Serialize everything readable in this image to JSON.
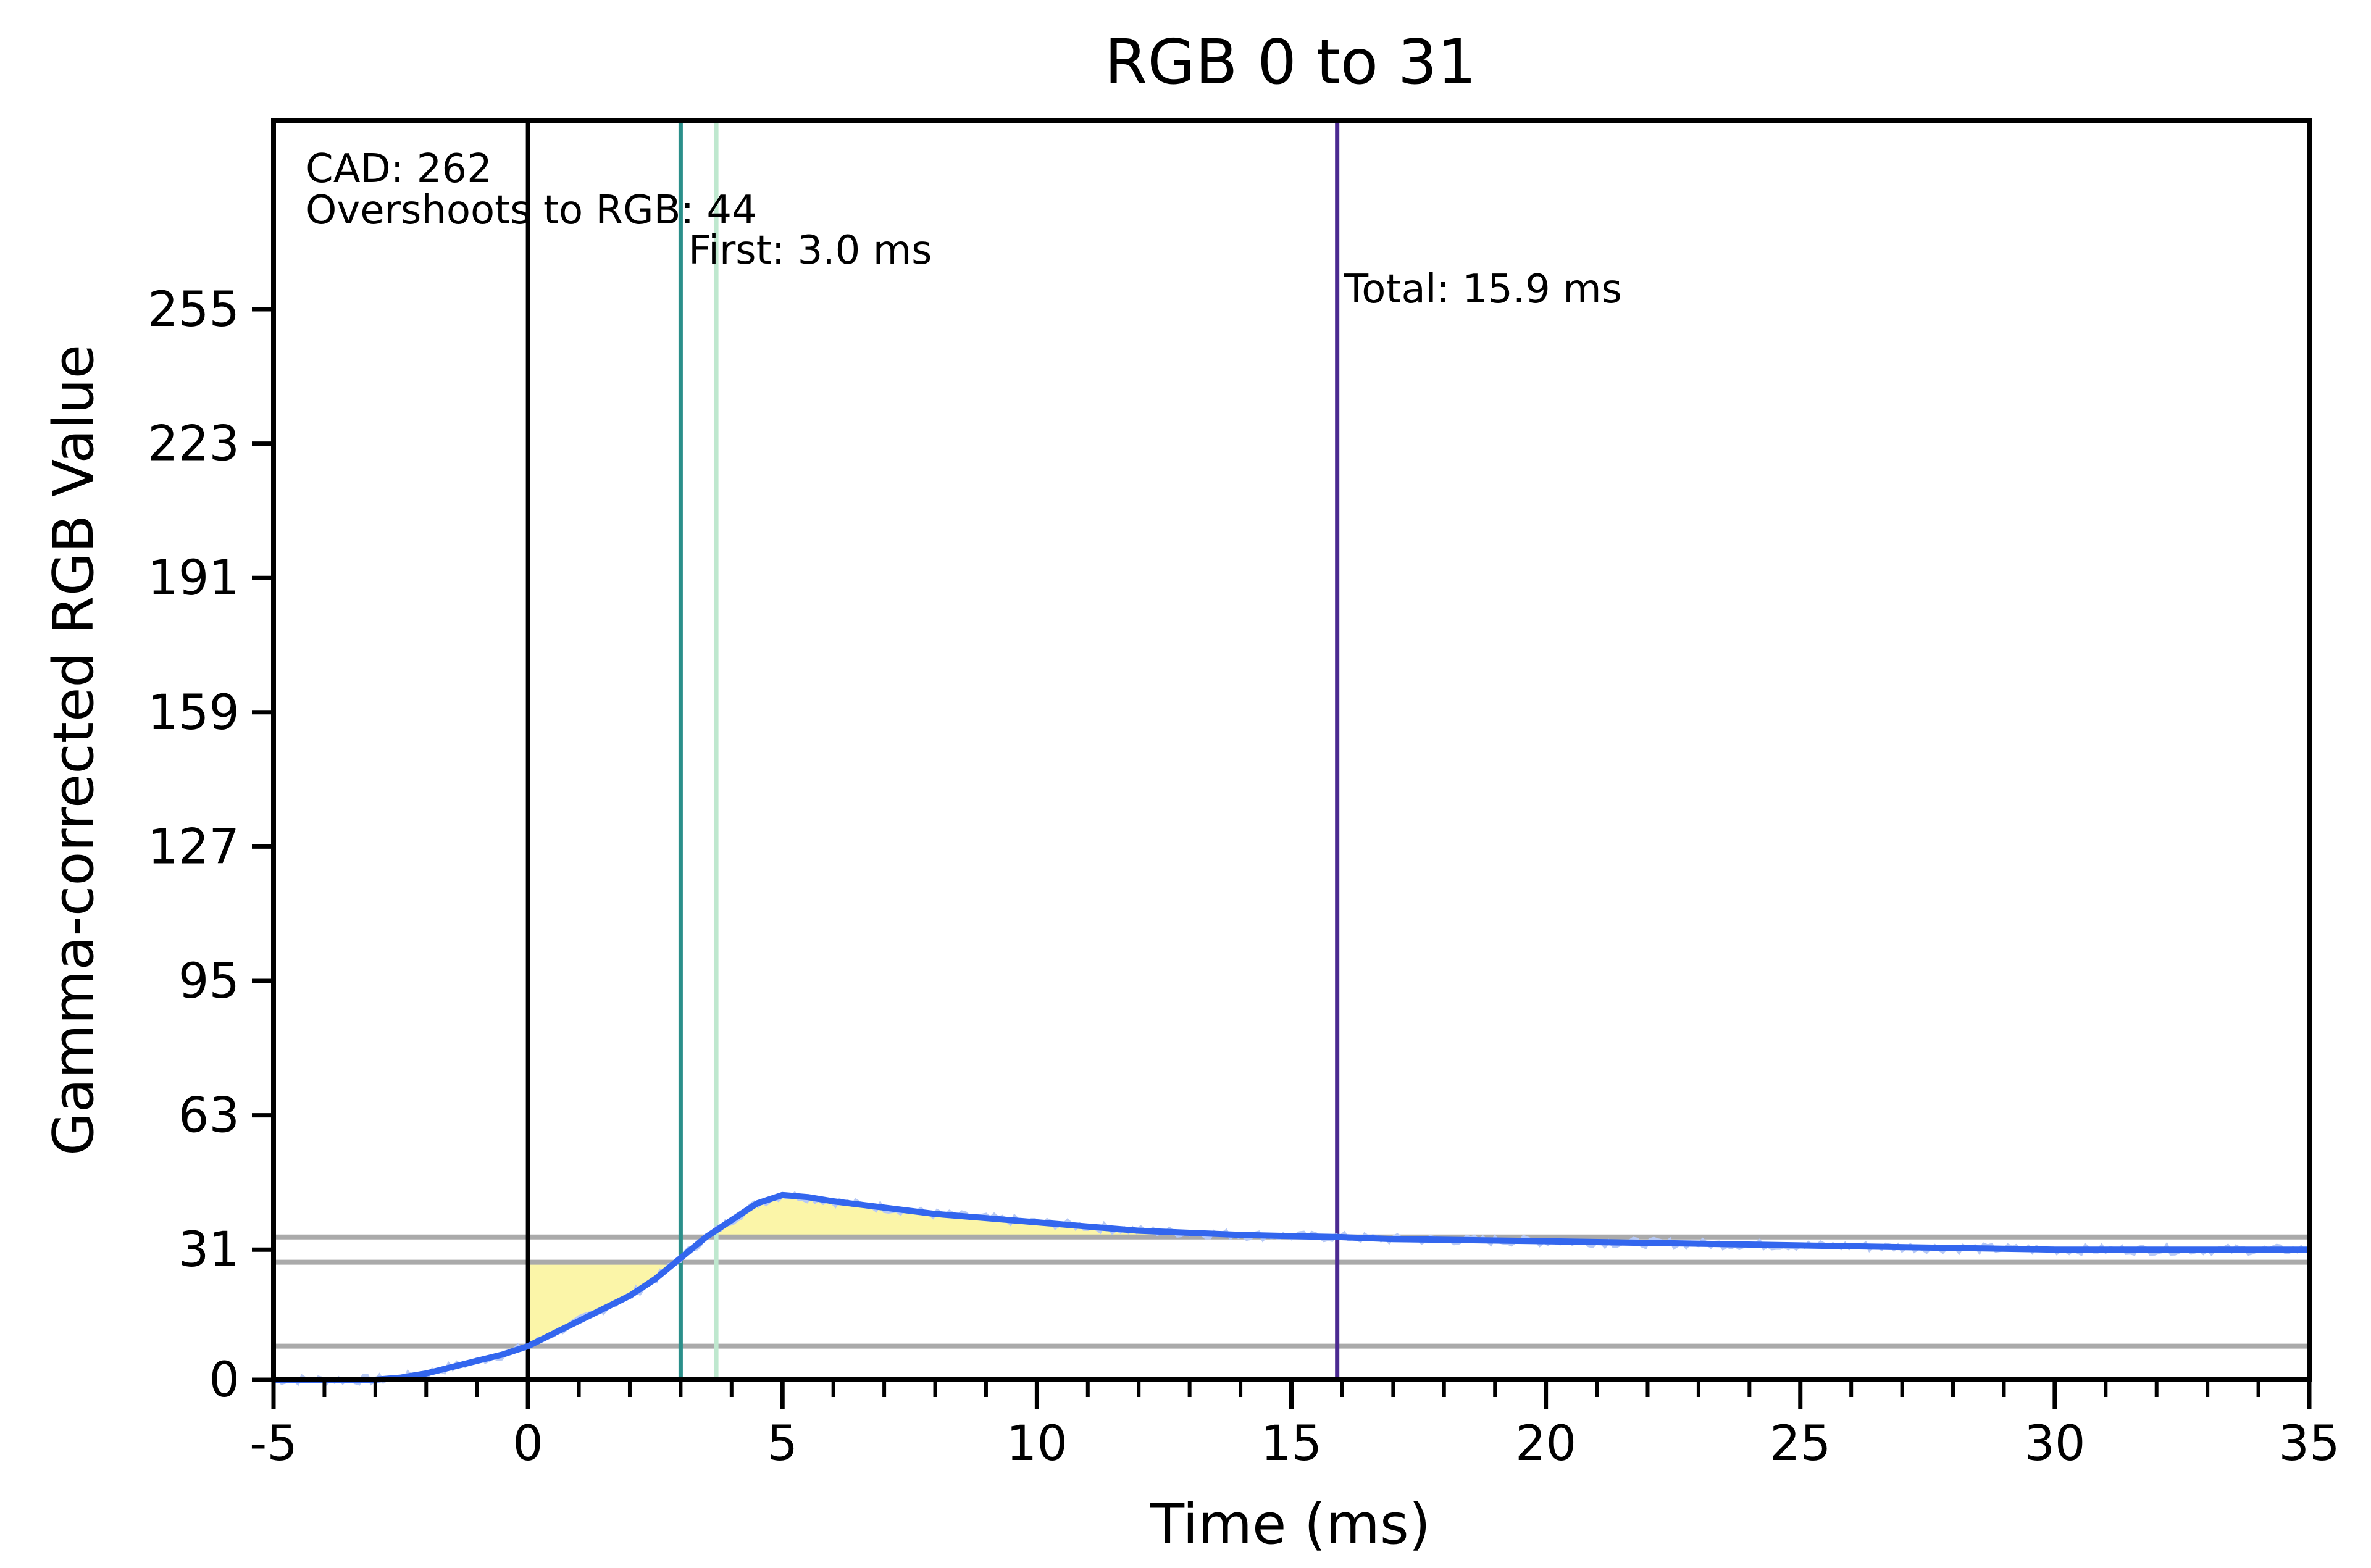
{
  "chart_data": {
    "type": "line",
    "title": "RGB 0 to 31",
    "xlabel": "Time (ms)",
    "ylabel": "Gamma-corrected RGB Value",
    "xlim": [
      -5,
      35
    ],
    "ylim": [
      0,
      300
    ],
    "xticks": [
      -5,
      0,
      5,
      10,
      15,
      20,
      25,
      30,
      35
    ],
    "xticks_minor_step": 1,
    "yticks": [
      0,
      31,
      63,
      95,
      127,
      159,
      191,
      223,
      255
    ],
    "grid": false,
    "legend": "none",
    "series": [
      {
        "color": "#3366ee",
        "x": [
          -5,
          -4,
          -3,
          -2.5,
          -2,
          -1.5,
          -1,
          -0.5,
          0,
          0.5,
          1,
          1.5,
          2,
          2.5,
          3,
          3.5,
          4,
          4.5,
          5,
          5.5,
          6,
          7,
          8,
          9,
          10,
          11,
          12,
          13,
          14,
          15,
          15.9,
          17,
          20,
          25,
          30,
          35
        ],
        "y": [
          0,
          0,
          0,
          0.5,
          1.5,
          3,
          4.5,
          6,
          8,
          11,
          14,
          17,
          20,
          24,
          29,
          34,
          38,
          42,
          44,
          43.5,
          42.5,
          41,
          39.5,
          38.5,
          37.5,
          36.5,
          35.5,
          35,
          34.5,
          34.2,
          34,
          33.5,
          33,
          32,
          31,
          31
        ]
      }
    ],
    "reference_lines": {
      "horizontal": [
        {
          "y": 8,
          "color": "#aaaaaa"
        },
        {
          "y": 28,
          "color": "#aaaaaa"
        },
        {
          "y": 34,
          "color": "#aaaaaa"
        }
      ],
      "vertical": [
        {
          "x": 0,
          "color": "#000000"
        },
        {
          "x": 3.0,
          "color": "#2a8f8a"
        },
        {
          "x": 3.7,
          "color": "#bfe8cf"
        },
        {
          "x": 15.9,
          "color": "#4b2a91"
        }
      ]
    },
    "shading": {
      "color": "#fbf5a8",
      "regions": [
        {
          "x0": 0,
          "x1": 3.0,
          "upper": 28,
          "kind": "below-target"
        },
        {
          "x0": 3.5,
          "x1": 15.9,
          "lower": 34,
          "kind": "overshoot"
        }
      ]
    },
    "annotations": [
      {
        "name": "annotation-cad",
        "text": "CAD: 262"
      },
      {
        "name": "annotation-overshoot",
        "text": "Overshoots to RGB: 44"
      },
      {
        "name": "annotation-first",
        "text": "First: 3.0 ms"
      },
      {
        "name": "annotation-total",
        "text": "Total: 15.9 ms"
      }
    ]
  }
}
